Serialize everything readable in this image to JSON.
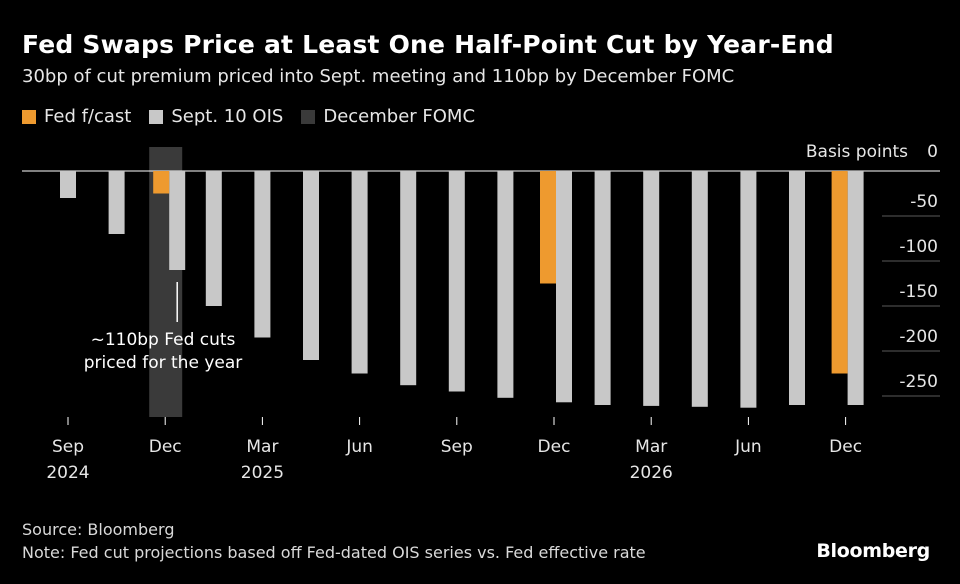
{
  "title": "Fed Swaps Price at Least One Half-Point Cut by Year-End",
  "subtitle": "30bp of cut premium priced into Sept. meeting and 110bp by December FOMC",
  "legend": [
    {
      "label": "Fed f/cast",
      "color": "#ee9a2f"
    },
    {
      "label": "Sept. 10 OIS",
      "color": "#c8c8c8"
    },
    {
      "label": "December FOMC",
      "color": "#3a3a3a"
    }
  ],
  "source": "Source: Bloomberg",
  "note": "Note: Fed cut projections based off Fed-dated OIS series vs. Fed effective rate",
  "brand": "Bloomberg",
  "annotation": "~110bp Fed cuts priced for the year",
  "chart_data": {
    "type": "bar",
    "ylabel": "Basis points",
    "ylim": [
      -280,
      0
    ],
    "yticks": [
      0,
      -50,
      -100,
      -150,
      -200,
      -250
    ],
    "ytick_labels": [
      "0",
      "-50",
      "-100",
      "-150",
      "-200",
      "-250"
    ],
    "x_ticks": [
      {
        "label": "Sep",
        "year": "2024",
        "at": 0
      },
      {
        "label": "Dec",
        "year": "",
        "at": 2
      },
      {
        "label": "Mar",
        "year": "2025",
        "at": 4
      },
      {
        "label": "Jun",
        "year": "",
        "at": 6
      },
      {
        "label": "Sep",
        "year": "",
        "at": 8
      },
      {
        "label": "Dec",
        "year": "",
        "at": 10
      },
      {
        "label": "Mar",
        "year": "2026",
        "at": 12
      },
      {
        "label": "Jun",
        "year": "",
        "at": 14
      },
      {
        "label": "Dec",
        "year": "",
        "at": 16
      }
    ],
    "highlight_band_index": 2,
    "series": [
      {
        "name": "Sept. 10 OIS",
        "color": "#c8c8c8",
        "values": [
          -30,
          -70,
          -110,
          -150,
          -185,
          -210,
          -225,
          -238,
          -245,
          -252,
          -257,
          -260,
          -261,
          -262,
          -263,
          -260,
          -260
        ]
      },
      {
        "name": "Fed f/cast",
        "color": "#ee9a2f",
        "points": [
          {
            "index": 2,
            "value": -25
          },
          {
            "index": 10,
            "value": -125
          },
          {
            "index": 16,
            "value": -225
          }
        ]
      }
    ]
  }
}
